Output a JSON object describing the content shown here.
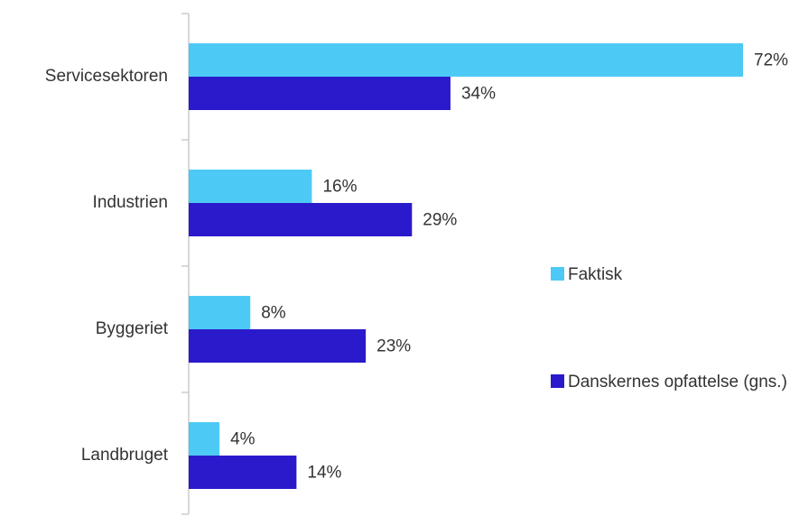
{
  "chart_data": {
    "type": "bar",
    "orientation": "horizontal",
    "categories": [
      "Servicesektoren",
      "Industrien",
      "Byggeriet",
      "Landbruget"
    ],
    "series": [
      {
        "name": "Faktisk",
        "color": "#4dc9f6",
        "values": [
          72,
          16,
          8,
          4
        ],
        "value_labels": [
          "72%",
          "16%",
          "8%",
          "4%"
        ]
      },
      {
        "name": "Danskernes opfattelse (gns.)",
        "color": "#2a1acb",
        "values": [
          34,
          29,
          23,
          14
        ],
        "value_labels": [
          "34%",
          "29%",
          "23%",
          "14%"
        ]
      }
    ]
  }
}
